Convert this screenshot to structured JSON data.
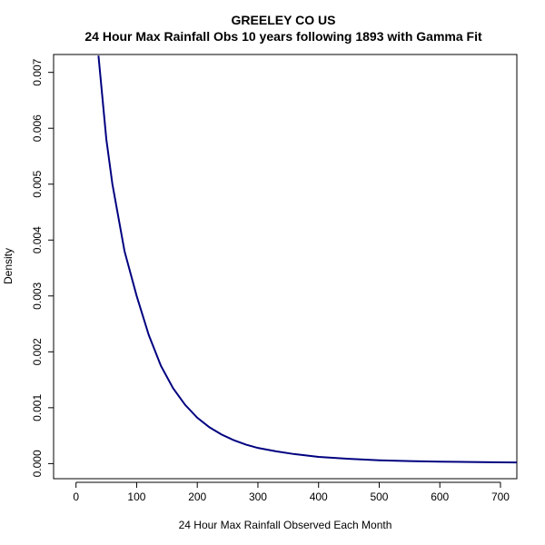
{
  "chart_data": {
    "type": "line",
    "title": "GREELEY CO US",
    "subtitle": "24 Hour Max Rainfall Obs 10 years following 1893 with Gamma Fit",
    "xlabel": "24 Hour Max Rainfall Observed Each Month",
    "ylabel": "Density",
    "xlim": [
      -37,
      727
    ],
    "ylim": [
      -0.00027,
      0.00732
    ],
    "x_ticks": [
      0,
      100,
      200,
      300,
      400,
      500,
      600,
      700
    ],
    "x_tick_labels": [
      "0",
      "100",
      "200",
      "300",
      "400",
      "500",
      "600",
      "700"
    ],
    "y_ticks": [
      0.0,
      0.001,
      0.002,
      0.003,
      0.004,
      0.005,
      0.006,
      0.007
    ],
    "y_tick_labels": [
      "0.000",
      "0.001",
      "0.002",
      "0.003",
      "0.004",
      "0.005",
      "0.006",
      "0.007"
    ],
    "grid": false,
    "legend": "none",
    "series": [
      {
        "color": "#000080",
        "x": [
          37,
          50,
          60,
          70,
          80,
          100,
          120,
          140,
          160,
          180,
          200,
          220,
          240,
          260,
          280,
          300,
          330,
          360,
          400,
          450,
          500,
          550,
          600,
          650,
          700,
          727
        ],
        "y": [
          0.0073,
          0.0058,
          0.005,
          0.0044,
          0.0038,
          0.003,
          0.0023,
          0.00175,
          0.00135,
          0.00105,
          0.00082,
          0.00065,
          0.00052,
          0.00042,
          0.00034,
          0.00028,
          0.00022,
          0.00017,
          0.00012,
          8.5e-05,
          6e-05,
          4.5e-05,
          3.5e-05,
          2.8e-05,
          2.2e-05,
          2e-05
        ]
      }
    ]
  }
}
